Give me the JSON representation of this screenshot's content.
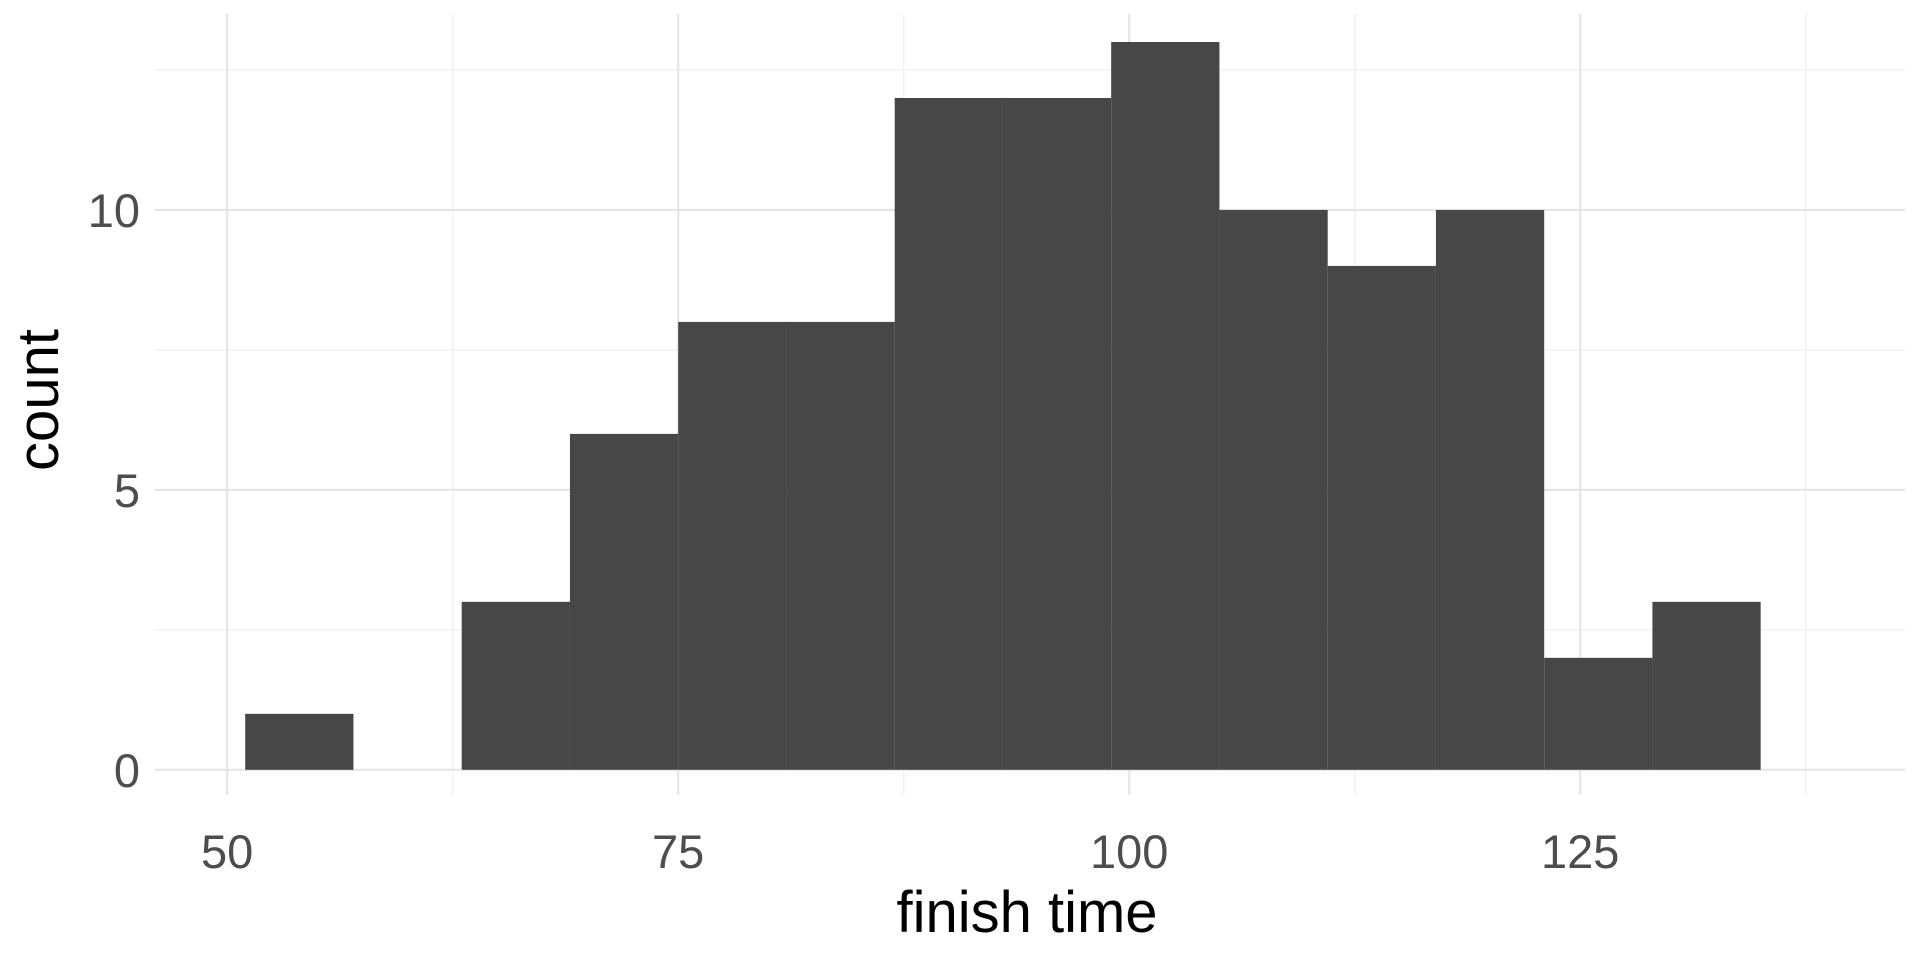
{
  "chart_data": {
    "type": "bar",
    "subtype": "histogram",
    "xlabel": "finish time",
    "ylabel": "count",
    "xlim": [
      46,
      143
    ],
    "ylim": [
      -0.45,
      13.5
    ],
    "x_ticks": [
      50,
      75,
      100,
      125
    ],
    "x_minor_ticks": [
      62.5,
      87.5,
      112.5,
      137.5
    ],
    "y_ticks": [
      0,
      5,
      10
    ],
    "y_minor_ticks": [
      2.5,
      7.5,
      12.5
    ],
    "grid": true,
    "legend": "none",
    "bar_color": "#474747",
    "bins": [
      {
        "x0": 51,
        "x1": 57,
        "count": 1
      },
      {
        "x0": 57,
        "x1": 63,
        "count": 0
      },
      {
        "x0": 63,
        "x1": 69,
        "count": 3
      },
      {
        "x0": 69,
        "x1": 75,
        "count": 6
      },
      {
        "x0": 75,
        "x1": 81,
        "count": 8
      },
      {
        "x0": 81,
        "x1": 87,
        "count": 8
      },
      {
        "x0": 87,
        "x1": 93,
        "count": 12
      },
      {
        "x0": 93,
        "x1": 99,
        "count": 12
      },
      {
        "x0": 99,
        "x1": 105,
        "count": 13
      },
      {
        "x0": 105,
        "x1": 111,
        "count": 10
      },
      {
        "x0": 111,
        "x1": 117,
        "count": 9
      },
      {
        "x0": 117,
        "x1": 123,
        "count": 10
      },
      {
        "x0": 123,
        "x1": 129,
        "count": 2
      },
      {
        "x0": 129,
        "x1": 135,
        "count": 3
      }
    ]
  }
}
